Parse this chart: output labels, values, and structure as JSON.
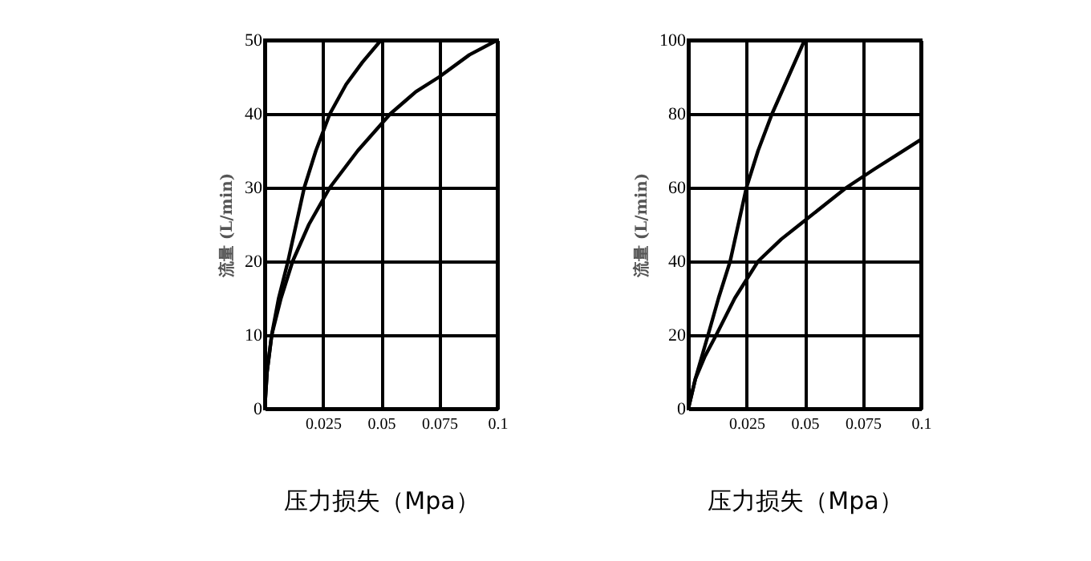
{
  "chart_data": [
    {
      "type": "line",
      "xlabel": "压力损失（Mpa）",
      "ylabel": "流量 (L/min)",
      "xlim": [
        0,
        0.1
      ],
      "ylim": [
        0,
        50
      ],
      "xticks": [
        {
          "value": 0,
          "label": null
        },
        0.025,
        0.05,
        0.075,
        0.1
      ],
      "yticks": [
        0,
        10,
        20,
        30,
        40,
        50
      ],
      "grid": true,
      "series": [
        {
          "color": "#000000",
          "x": [
            0,
            0.001,
            0.003,
            0.006,
            0.01,
            0.017,
            0.022,
            0.028,
            0.035,
            0.042,
            0.05
          ],
          "values": [
            0,
            5,
            10,
            15,
            20,
            30,
            35,
            40,
            44,
            47,
            50
          ]
        },
        {
          "color": "#000000",
          "x": [
            0,
            0.001,
            0.003,
            0.007,
            0.012,
            0.019,
            0.028,
            0.04,
            0.054,
            0.065,
            0.075,
            0.088,
            0.1
          ],
          "values": [
            0,
            5,
            10,
            15,
            20,
            25,
            30,
            35,
            40,
            43,
            45,
            48,
            50
          ]
        }
      ]
    },
    {
      "type": "line",
      "xlabel": "压力损失（Mpa）",
      "ylabel": "流量 (L/min)",
      "xlim": [
        0,
        0.1
      ],
      "ylim": [
        0,
        100
      ],
      "xticks": [
        {
          "value": 0,
          "label": null
        },
        0.025,
        0.05,
        0.075,
        0.1
      ],
      "yticks": [
        0,
        20,
        40,
        60,
        80,
        100
      ],
      "grid": true,
      "series": [
        {
          "color": "#000000",
          "x": [
            0,
            0.003,
            0.0085,
            0.013,
            0.018,
            0.025,
            0.03,
            0.036,
            0.043,
            0.05
          ],
          "values": [
            0,
            8,
            20,
            30,
            40,
            60,
            70,
            80,
            90,
            100
          ]
        },
        {
          "color": "#000000",
          "x": [
            0,
            0.003,
            0.007,
            0.012,
            0.02,
            0.03,
            0.04,
            0.048,
            0.058,
            0.068,
            0.08,
            0.09,
            0.1
          ],
          "values": [
            0,
            8,
            14,
            20,
            30,
            40,
            46,
            50,
            55,
            60,
            65,
            69,
            73
          ]
        }
      ]
    }
  ]
}
